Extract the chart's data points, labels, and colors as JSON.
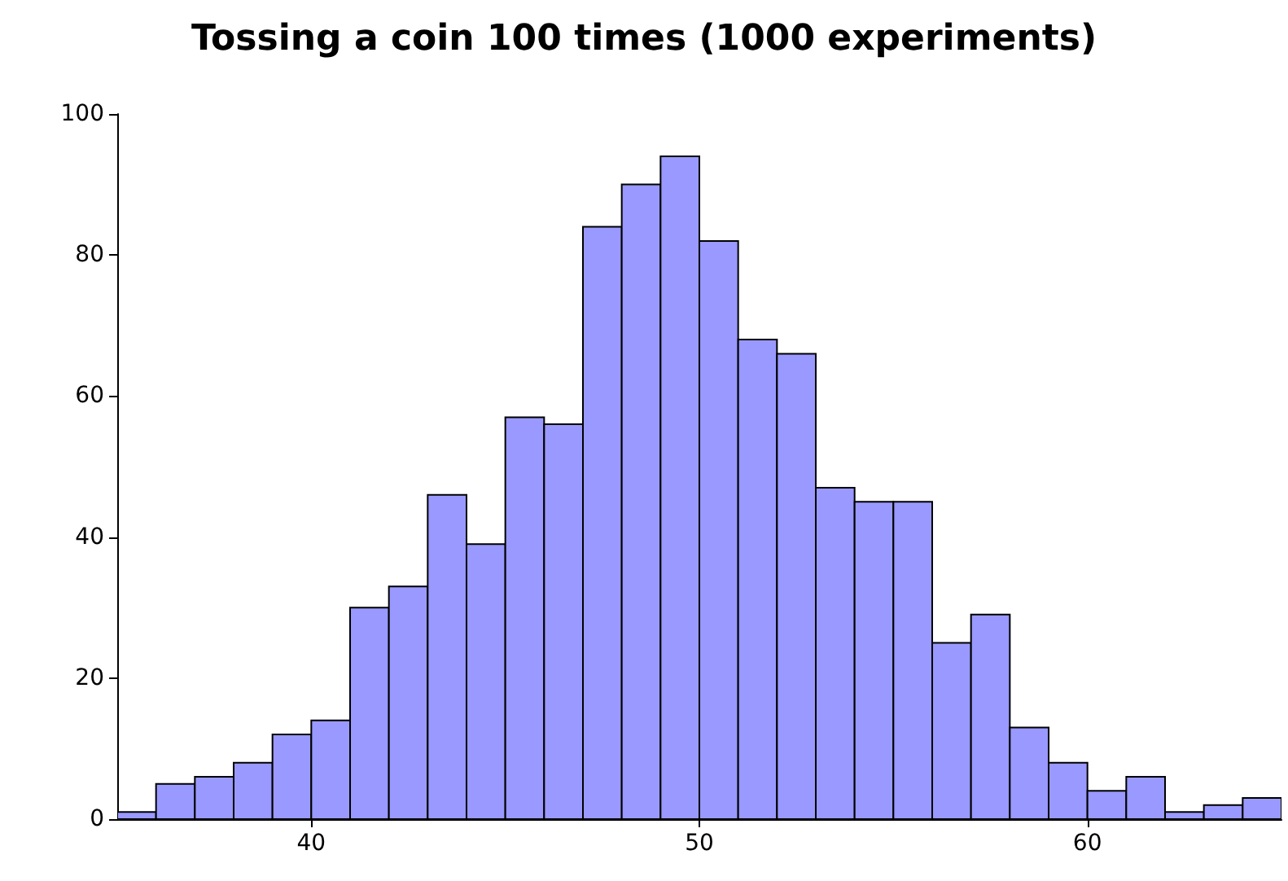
{
  "chart_data": {
    "type": "histogram",
    "title": "Tossing a coin 100 times (1000 experiments)",
    "bins": [
      35,
      36,
      37,
      38,
      39,
      40,
      41,
      42,
      43,
      44,
      45,
      46,
      47,
      48,
      49,
      50,
      51,
      52,
      53,
      54,
      55,
      56,
      57,
      58,
      59,
      60,
      61,
      62,
      63,
      64,
      65
    ],
    "values": [
      1,
      5,
      6,
      8,
      12,
      14,
      30,
      33,
      46,
      39,
      57,
      56,
      84,
      90,
      94,
      82,
      68,
      66,
      47,
      45,
      45,
      25,
      29,
      13,
      8,
      4,
      6,
      1,
      2,
      3
    ],
    "color": "#9999ff",
    "xlim": [
      35,
      65
    ],
    "xticks": [
      40,
      50,
      60
    ],
    "ylim": [
      0,
      100
    ],
    "yticks": [
      0,
      20,
      40,
      60,
      80,
      100
    ],
    "grid": false
  }
}
